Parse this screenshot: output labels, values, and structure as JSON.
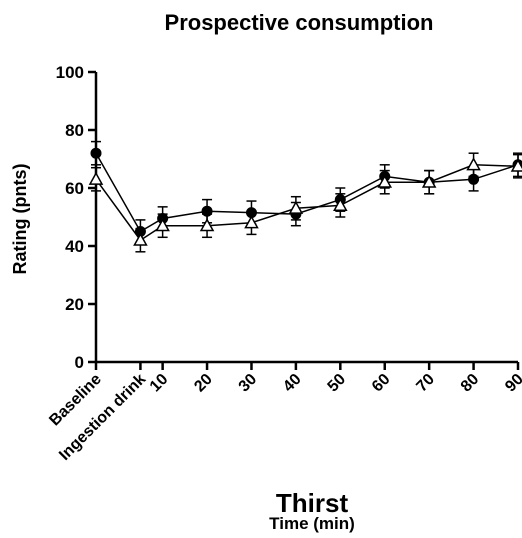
{
  "chart_data": {
    "type": "line",
    "title": "Prospective consumption",
    "ylabel": "Rating (pnts)",
    "xlabel_main": "Thirst",
    "xlabel_sub": "Time (min)",
    "ylim": [
      0,
      100
    ],
    "yticks": [
      0,
      20,
      40,
      60,
      80,
      100
    ],
    "categories": [
      "Baseline",
      "Ingestion drink",
      "10",
      "20",
      "30",
      "40",
      "50",
      "60",
      "70",
      "80",
      "90"
    ],
    "x": [
      -5,
      5,
      10,
      20,
      30,
      40,
      50,
      60,
      70,
      80,
      90
    ],
    "xlim": [
      -5,
      90
    ],
    "grid": false,
    "series": [
      {
        "marker": "circle-filled",
        "color": "#000000",
        "values": [
          72,
          45,
          49.5,
          52,
          51.5,
          51,
          56,
          64,
          62,
          63,
          68
        ],
        "errors": [
          4,
          4,
          4,
          4,
          4,
          4,
          4,
          4,
          4,
          4,
          4
        ]
      },
      {
        "marker": "triangle-open",
        "color": "#000000",
        "values": [
          63,
          42,
          47,
          47,
          48,
          53,
          54,
          62,
          62,
          68,
          67.5
        ],
        "errors": [
          4,
          4,
          4,
          4,
          4,
          4,
          4,
          4,
          4,
          4,
          4
        ]
      }
    ]
  }
}
